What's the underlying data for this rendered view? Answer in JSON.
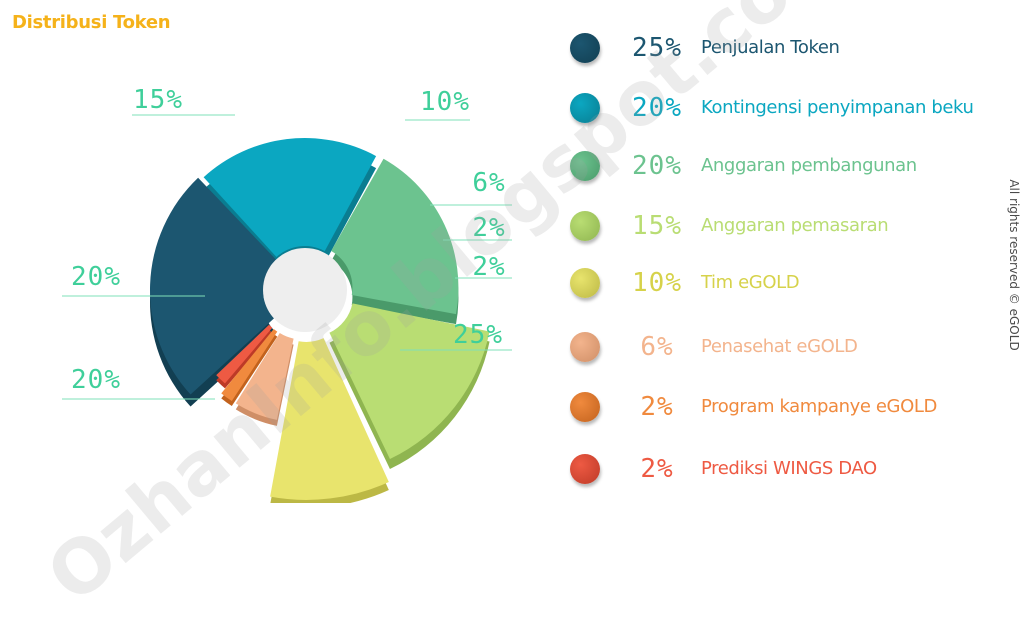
{
  "title": "Distribusi Token",
  "colors": {
    "title": "#f5b21a",
    "leader_line": "#7fe0b8",
    "pct_label": "#3fcf9a",
    "hole": "#eeeeee"
  },
  "copyright": "All rights reserved © eGOLD",
  "watermark": "OzhanInfo.blogspot.co.id",
  "chart_data": {
    "type": "pie",
    "slices": [
      {
        "label": "Penjualan Token",
        "value": 25,
        "value_text": "25%",
        "color": "#1c5670",
        "depth": "#123f52"
      },
      {
        "label": "Kontingensi penyimpanan beku",
        "value": 20,
        "value_text": "20%",
        "color": "#0ba7c1",
        "depth": "#0a7d91"
      },
      {
        "label": "Anggaran pembangunan",
        "value": 20,
        "value_text": "20%",
        "color": "#6cc38f",
        "depth": "#4a9a6a"
      },
      {
        "label": "Anggaran pemasaran",
        "value": 15,
        "value_text": "15%",
        "color": "#b9dd73",
        "depth": "#8fb550"
      },
      {
        "label": "Tim eGOLD",
        "value": 10,
        "value_text": "10%",
        "color": "#e8e46d",
        "depth": "#bcb845"
      },
      {
        "label": "Penasehat eGOLD",
        "value": 6,
        "value_text": "6%",
        "color": "#f3b48d",
        "depth": "#cf8e66"
      },
      {
        "label": "Program kampanye eGOLD",
        "value": 2,
        "value_text": "2%",
        "color": "#f08a3e",
        "depth": "#c2621d"
      },
      {
        "label": "Prediksi WINGS DAO",
        "value": 2,
        "value_text": "2%",
        "color": "#ee5a43",
        "depth": "#bd3a27"
      }
    ]
  },
  "legend_label_colors": [
    "#1c5670",
    "#0ba7c1",
    "#6cc38f",
    "#b9dd73",
    "#d6d24a",
    "#f3b48d",
    "#f08a3e",
    "#ee5a43"
  ]
}
